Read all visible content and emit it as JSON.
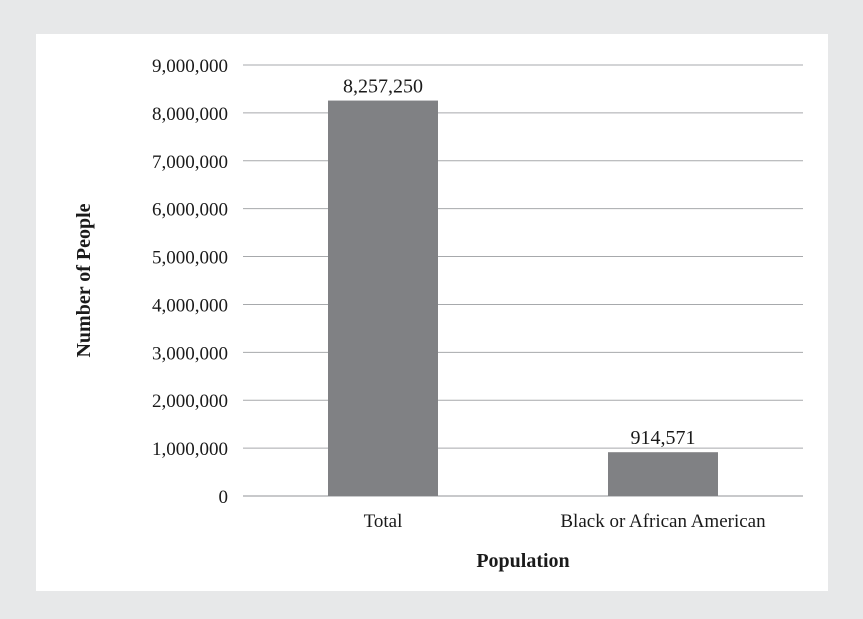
{
  "chart_data": {
    "type": "bar",
    "title": "",
    "xlabel": "Population",
    "ylabel": "Number of People",
    "categories": [
      "Total",
      "Black or African American"
    ],
    "values": [
      8257250,
      914571
    ],
    "data_labels": [
      "8,257,250",
      "914,571"
    ],
    "ylim": [
      0,
      9000000
    ],
    "yticks": [
      0,
      1000000,
      2000000,
      3000000,
      4000000,
      5000000,
      6000000,
      7000000,
      8000000,
      9000000
    ],
    "ytick_labels": [
      "0",
      "1,000,000",
      "2,000,000",
      "3,000,000",
      "4,000,000",
      "5,000,000",
      "6,000,000",
      "7,000,000",
      "8,000,000",
      "9,000,000"
    ],
    "grid": true,
    "legend": "none",
    "bar_color": "#808184",
    "grid_color": "#a7a9ac"
  }
}
